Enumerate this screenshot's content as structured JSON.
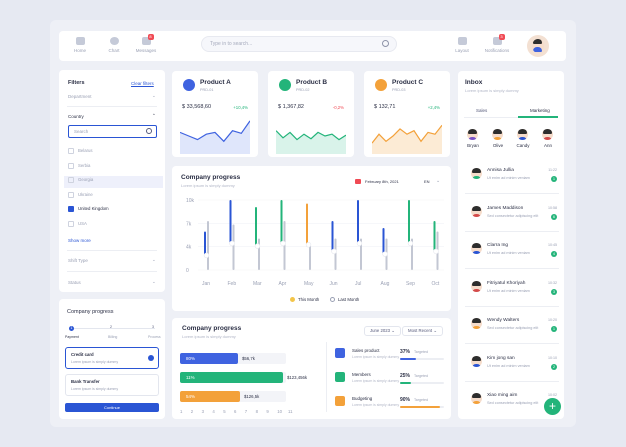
{
  "nav": {
    "home": "Home",
    "chart": "Chart",
    "messages": "Messages",
    "messages_badge": "8",
    "layout": "Layout",
    "notifications": "Notifications",
    "notifications_badge": "3"
  },
  "search": {
    "placeholder": "Type in to search..."
  },
  "filters": {
    "title": "Filters",
    "clear": "Clear filters",
    "department": "Department",
    "country": "Country",
    "country_search_placeholder": "Search",
    "countries": [
      {
        "label": "Belarus",
        "checked": false
      },
      {
        "label": "Serbia",
        "checked": false
      },
      {
        "label": "Georgia",
        "checked": false
      },
      {
        "label": "Ukraine",
        "checked": false
      },
      {
        "label": "United Kingdom",
        "checked": true
      },
      {
        "label": "USA",
        "checked": false
      }
    ],
    "show_more": "Show more",
    "shift_type": "Shift Type",
    "status": "Status"
  },
  "products": [
    {
      "name": "Product A",
      "code": "PRD-01",
      "value": "$ 33,568,60",
      "change": "+10,4%",
      "change_color": "#23b47a",
      "accent": "#3f63e0",
      "fill": "#dfe6fb",
      "stroke": "#3f63e0",
      "points": [
        22,
        18,
        14,
        20,
        22,
        12,
        24,
        21,
        35
      ]
    },
    {
      "name": "Product B",
      "code": "PRD-02",
      "value": "$ 1,367,82",
      "change": "-0,2%",
      "change_color": "#f04a54",
      "accent": "#23b47a",
      "fill": "#d9f3ea",
      "stroke": "#23b47a",
      "points": [
        24,
        16,
        22,
        14,
        20,
        15,
        22,
        18,
        20,
        14,
        19
      ]
    },
    {
      "name": "Product C",
      "code": "PRD-03",
      "value": "$ 132,71",
      "change": "+2,4%",
      "change_color": "#23b47a",
      "accent": "#f3a13a",
      "fill": "#fcebd5",
      "stroke": "#f3a13a",
      "points": [
        10,
        20,
        12,
        18,
        26,
        20,
        24,
        12,
        22,
        20,
        30
      ]
    }
  ],
  "company_progress": {
    "title": "Company progress",
    "subtitle": "Lorem ipsum is simply dummy",
    "date": "February 8th, 2021",
    "lang": "EN",
    "legend_this": "This Month",
    "legend_last": "Last Month"
  },
  "chart_data": {
    "type": "bar",
    "categories": [
      "Jan",
      "Feb",
      "Mar",
      "Apr",
      "May",
      "Jun",
      "Jul",
      "Aug",
      "Sep",
      "Oct"
    ],
    "y_ticks": [
      "10k",
      "7k",
      "4k",
      "0"
    ],
    "ylim": [
      0,
      10
    ],
    "series": [
      {
        "name": "This Month",
        "values": [
          5.5,
          10,
          9,
          10,
          9.5,
          7,
          10,
          6,
          10,
          7
        ],
        "colors": [
          "#2a55d4",
          "#2a55d4",
          "#23b47a",
          "#23b47a",
          "#f3a13a",
          "#2a55d4",
          "#2a55d4",
          "#2a55d4",
          "#23b47a",
          "#23b47a"
        ]
      },
      {
        "name": "Last Month",
        "values": [
          7,
          6.5,
          4.5,
          7,
          3.5,
          4.5,
          4.5,
          4.5,
          4.5,
          5.5
        ]
      }
    ]
  },
  "inbox": {
    "title": "Inbox",
    "subtitle": "Lorem ipsum is simply dummy",
    "tab_sales": "Sales",
    "tab_marketing": "Marketing",
    "people": [
      {
        "name": "Bryan",
        "shirt": "#7a53c9"
      },
      {
        "name": "Olive",
        "shirt": "#f3a13a"
      },
      {
        "name": "Candy",
        "shirt": "#2a55d4"
      },
      {
        "name": "Ann",
        "shirt": "#d34a4a"
      }
    ],
    "messages": [
      {
        "name": "Annisa Jullia",
        "text": "Ut enim ad minim veniam",
        "time": "11:22",
        "count": "1",
        "shirt": "#23b47a"
      },
      {
        "name": "James Maddison",
        "text": "Sed consectetur adipiscing elit",
        "time": "10:58",
        "count": "6",
        "shirt": "#d34a4a"
      },
      {
        "name": "Clarra Ing",
        "text": "Ut enim ad minim veniam",
        "time": "10:45",
        "count": "4",
        "shirt": "#2a55d4"
      },
      {
        "name": "Fitriyatul Khoriyah",
        "text": "Ut enim ad minim veniam",
        "time": "10:32",
        "count": "3",
        "shirt": "#d34a4a"
      },
      {
        "name": "Wendy Walters",
        "text": "Sed consectetur adipiscing elit",
        "time": "10:20",
        "count": "1",
        "shirt": "#f3a13a"
      },
      {
        "name": "Kim jong san",
        "text": "Ut enim ad minim veniam",
        "time": "10:10",
        "count": "2",
        "shirt": "#2a55d4"
      },
      {
        "name": "Xiao ming aim",
        "text": "Sed consectetur adipiscing elit",
        "time": "10:02",
        "count": "",
        "shirt": "#f3a13a"
      }
    ]
  },
  "steps": {
    "title": "Company progress",
    "labels": [
      "Payment",
      "Billing",
      "Process"
    ],
    "numbers": [
      "1",
      "2",
      "3"
    ],
    "credit_card": "Credit card",
    "credit_sub": "Lorem ipsum is simply dummy",
    "bank": "Bank Transfer",
    "bank_sub": "Lorem ipsum is simply dummy",
    "continue": "Continue"
  },
  "progress2": {
    "title": "Company progress",
    "subtitle": "Lorem ipsum is simply dummy",
    "chip_date": "June 2023",
    "chip_sort": "Most Recent",
    "bars": [
      {
        "pct": "80%",
        "fraction": 0.55,
        "value": "$56,7k",
        "color": "#3f63e0"
      },
      {
        "pct": "11%",
        "fraction": 0.97,
        "value": "$123,456k",
        "color": "#23b47a"
      },
      {
        "pct": "54%",
        "fraction": 0.57,
        "value": "$126,5k",
        "color": "#f3a13a"
      }
    ],
    "x_ticks": [
      "1",
      "2",
      "3",
      "4",
      "5",
      "6",
      "7",
      "8",
      "9",
      "10",
      "11"
    ],
    "items": [
      {
        "label": "Sales product",
        "sub": "Lorem ipsum is simply dummy",
        "pct": "37%",
        "target": "Targeted",
        "fill": 0.37,
        "color": "#3f63e0"
      },
      {
        "label": "Members",
        "sub": "Lorem ipsum is simply dummy",
        "pct": "25%",
        "target": "Targeted",
        "fill": 0.25,
        "color": "#23b47a"
      },
      {
        "label": "Budgeting",
        "sub": "Lorem ipsum is simply dummy",
        "pct": "90%",
        "target": "Targeted",
        "fill": 0.9,
        "color": "#f3a13a"
      }
    ]
  }
}
